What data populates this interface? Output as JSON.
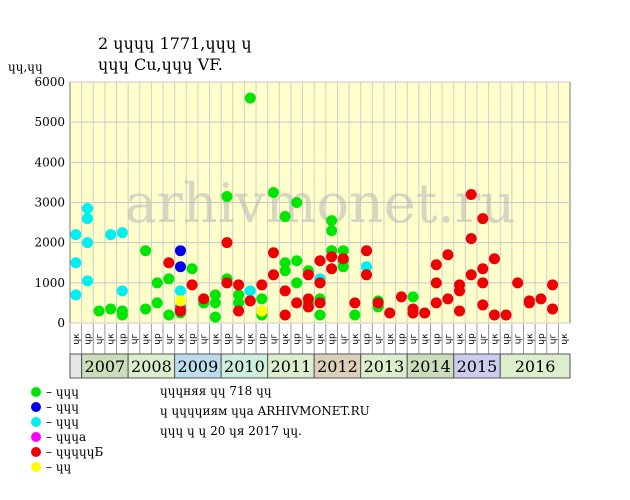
{
  "title_line1": "2 ɥɥɥɥ 1771,ɥɥɥ ɥ",
  "title_line2": "ɥɥɥ Cu,ɥɥɥ VF.",
  "unit_label": "ɥɥ,ɥɥ",
  "watermark": "arhivmonet.ru",
  "legend": [
    {
      "color": "#00e600",
      "label": "– ɥɥɥ"
    },
    {
      "color": "#0000ee",
      "label": "– ɥɥɥ"
    },
    {
      "color": "#00f0f0",
      "label": "– ɥɥɥ"
    },
    {
      "color": "#ff00ff",
      "label": "– ɥɥɥa"
    },
    {
      "color": "#ee0000",
      "label": "– ɥɥɥɥɥБ"
    },
    {
      "color": "#ffff00",
      "label": "– ɥɥ"
    }
  ],
  "info": [
    "ɥɥɥняя ɥɥ 718 ɥɥ",
    "ɥ ɥɥɥɥиям ɥɥa ARHIVMONET.RU",
    "ɥɥɥ ɥ ɥ 20 ɥя 2017 ɥɥ."
  ],
  "chart_data": {
    "type": "scatter",
    "ylim": [
      0,
      6000
    ],
    "yticks": [
      0,
      1000,
      2000,
      3000,
      4000,
      5000,
      6000
    ],
    "grid": true,
    "years": [
      {
        "label": "2007",
        "color": "#ccddbb"
      },
      {
        "label": "2008",
        "color": "#ddeecc"
      },
      {
        "label": "2009",
        "color": "#bbddee"
      },
      {
        "label": "2010",
        "color": "#ccf0dd"
      },
      {
        "label": "2011",
        "color": "#ddeecc"
      },
      {
        "label": "2012",
        "color": "#ddd0b8"
      },
      {
        "label": "2013",
        "color": "#ddeecc"
      },
      {
        "label": "2014",
        "color": "#ccddbb"
      },
      {
        "label": "2015",
        "color": "#ccccee"
      },
      {
        "label": "2016",
        "color": "#ddeecc"
      }
    ],
    "month_labels": [
      "ɥк",
      "ɥр",
      "ɥг",
      "ɥк",
      "ɥр",
      "ɥг",
      "ɥк",
      "ɥр",
      "ɥг",
      "ɥк",
      "ɥр",
      "ɥг",
      "ɥк",
      "ɥр",
      "ɥг",
      "ɥк",
      "ɥр",
      "ɥг",
      "ɥк",
      "ɥр",
      "ɥг",
      "ɥк",
      "ɥр",
      "ɥг",
      "ɥк",
      "ɥр",
      "ɥг",
      "ɥк",
      "ɥр",
      "ɥг",
      "ɥк",
      "ɥр",
      "ɥг",
      "ɥк",
      "ɥр",
      "ɥг",
      "ɥк",
      "ɥр",
      "ɥг",
      "ɥк",
      "ɥр",
      "ɥг",
      "ɥк"
    ],
    "series": [
      {
        "color": "#00e600",
        "points": [
          [
            2,
            300
          ],
          [
            3,
            350
          ],
          [
            4,
            300
          ],
          [
            4,
            200
          ],
          [
            6,
            1800
          ],
          [
            6,
            350
          ],
          [
            7,
            500
          ],
          [
            7,
            1000
          ],
          [
            8,
            1100
          ],
          [
            8,
            200
          ],
          [
            9,
            250
          ],
          [
            9,
            400
          ],
          [
            10,
            1350
          ],
          [
            11,
            600
          ],
          [
            11,
            500
          ],
          [
            12,
            700
          ],
          [
            12,
            150
          ],
          [
            12,
            500
          ],
          [
            13,
            1100
          ],
          [
            13,
            3150
          ],
          [
            14,
            700
          ],
          [
            14,
            500
          ],
          [
            15,
            5600
          ],
          [
            15,
            550
          ],
          [
            16,
            600
          ],
          [
            16,
            300
          ],
          [
            16,
            200
          ],
          [
            17,
            3250
          ],
          [
            18,
            2650
          ],
          [
            18,
            1500
          ],
          [
            18,
            1300
          ],
          [
            19,
            3000
          ],
          [
            19,
            1550
          ],
          [
            19,
            1000
          ],
          [
            20,
            1300
          ],
          [
            20,
            500
          ],
          [
            21,
            600
          ],
          [
            21,
            200
          ],
          [
            22,
            2550
          ],
          [
            22,
            2300
          ],
          [
            22,
            1800
          ],
          [
            23,
            1800
          ],
          [
            23,
            1550
          ],
          [
            23,
            1400
          ],
          [
            24,
            200
          ],
          [
            26,
            550
          ],
          [
            26,
            400
          ],
          [
            29,
            650
          ]
        ]
      },
      {
        "color": "#0000ee",
        "points": [
          [
            9,
            1400
          ],
          [
            9,
            1800
          ]
        ]
      },
      {
        "color": "#00f0f0",
        "points": [
          [
            0,
            1500
          ],
          [
            0,
            700
          ],
          [
            0,
            2200
          ],
          [
            1,
            2850
          ],
          [
            1,
            2600
          ],
          [
            1,
            2000
          ],
          [
            1,
            1050
          ],
          [
            3,
            2200
          ],
          [
            4,
            2250
          ],
          [
            4,
            800
          ],
          [
            9,
            800
          ],
          [
            15,
            800
          ],
          [
            21,
            1100
          ],
          [
            25,
            1400
          ]
        ]
      },
      {
        "color": "#ff00ff",
        "points": [
          [
            9,
            350
          ]
        ]
      },
      {
        "color": "#ee0000",
        "points": [
          [
            8,
            1500
          ],
          [
            9,
            300
          ],
          [
            10,
            950
          ],
          [
            11,
            600
          ],
          [
            13,
            2000
          ],
          [
            13,
            1000
          ],
          [
            14,
            950
          ],
          [
            14,
            300
          ],
          [
            15,
            550
          ],
          [
            16,
            950
          ],
          [
            17,
            1750
          ],
          [
            17,
            1200
          ],
          [
            18,
            800
          ],
          [
            18,
            200
          ],
          [
            19,
            500
          ],
          [
            20,
            1200
          ],
          [
            20,
            600
          ],
          [
            20,
            400
          ],
          [
            21,
            1550
          ],
          [
            21,
            1000
          ],
          [
            21,
            500
          ],
          [
            22,
            1650
          ],
          [
            22,
            1350
          ],
          [
            23,
            1600
          ],
          [
            24,
            500
          ],
          [
            25,
            1800
          ],
          [
            25,
            1200
          ],
          [
            26,
            500
          ],
          [
            27,
            250
          ],
          [
            28,
            650
          ],
          [
            29,
            350
          ],
          [
            29,
            250
          ],
          [
            30,
            250
          ],
          [
            31,
            1450
          ],
          [
            31,
            1000
          ],
          [
            31,
            500
          ],
          [
            32,
            1700
          ],
          [
            32,
            600
          ],
          [
            33,
            950
          ],
          [
            33,
            800
          ],
          [
            33,
            300
          ],
          [
            34,
            3200
          ],
          [
            34,
            2100
          ],
          [
            34,
            1200
          ],
          [
            35,
            2600
          ],
          [
            35,
            1350
          ],
          [
            35,
            1000
          ],
          [
            35,
            450
          ],
          [
            36,
            1600
          ],
          [
            36,
            200
          ],
          [
            37,
            200
          ],
          [
            38,
            1000
          ],
          [
            39,
            550
          ],
          [
            39,
            500
          ],
          [
            40,
            600
          ],
          [
            41,
            950
          ],
          [
            41,
            350
          ]
        ]
      },
      {
        "color": "#ffff00",
        "points": [
          [
            9,
            550
          ],
          [
            16,
            300
          ]
        ]
      }
    ]
  }
}
